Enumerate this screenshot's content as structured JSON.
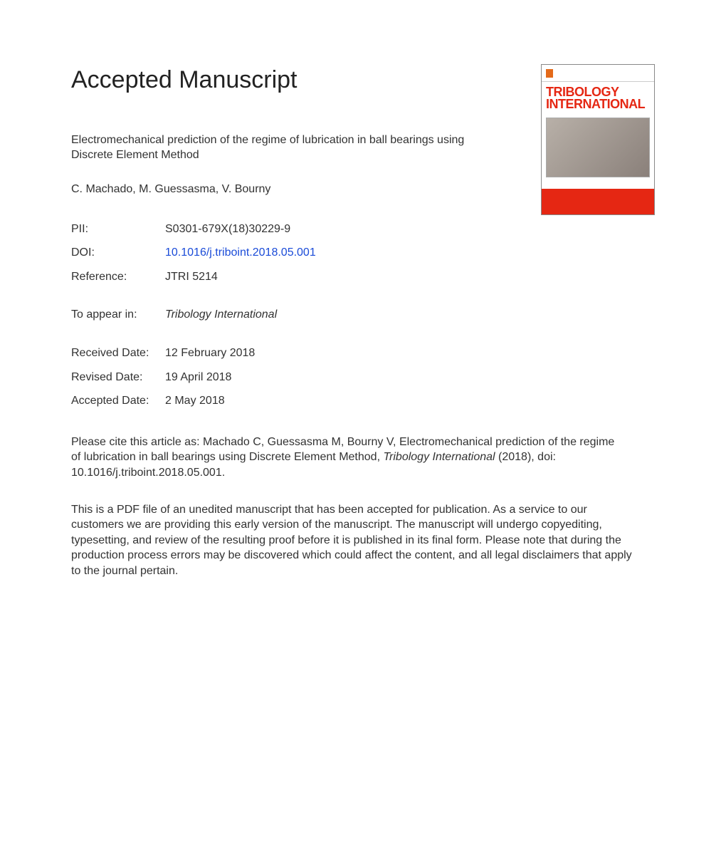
{
  "heading": "Accepted Manuscript",
  "article_title": "Electromechanical prediction of the regime of lubrication in ball bearings using Discrete Element Method",
  "authors": "C. Machado, M. Guessasma, V. Bourny",
  "cover": {
    "journal_line1": "TRIBOLOGY",
    "journal_line2": "INTERNATIONAL"
  },
  "meta": {
    "pii_label": "PII:",
    "pii_value": "S0301-679X(18)30229-9",
    "doi_label": "DOI:",
    "doi_value": "10.1016/j.triboint.2018.05.001",
    "ref_label": "Reference:",
    "ref_value": "JTRI 5214",
    "appear_label": "To appear in:",
    "appear_value": "Tribology International",
    "received_label": "Received Date:",
    "received_value": "12 February 2018",
    "revised_label": "Revised Date:",
    "revised_value": "19 April 2018",
    "accepted_label": "Accepted Date:",
    "accepted_value": "2 May 2018"
  },
  "citation_pre": "Please cite this article as: Machado C, Guessasma M, Bourny V, Electromechanical prediction of the regime of lubrication in ball bearings using Discrete Element Method, ",
  "citation_journal": "Tribology International",
  "citation_post": " (2018), doi: 10.1016/j.triboint.2018.05.001.",
  "disclaimer": "This is a PDF file of an unedited manuscript that has been accepted for publication. As a service to our customers we are providing this early version of the manuscript. The manuscript will undergo copyediting, typesetting, and review of the resulting proof before it is published in its final form. Please note that during the production process errors may be discovered which could affect the content, and all legal disclaimers that apply to the journal pertain.",
  "colors": {
    "link": "#1a4bd8",
    "cover_red": "#e52713",
    "text": "#323232"
  }
}
